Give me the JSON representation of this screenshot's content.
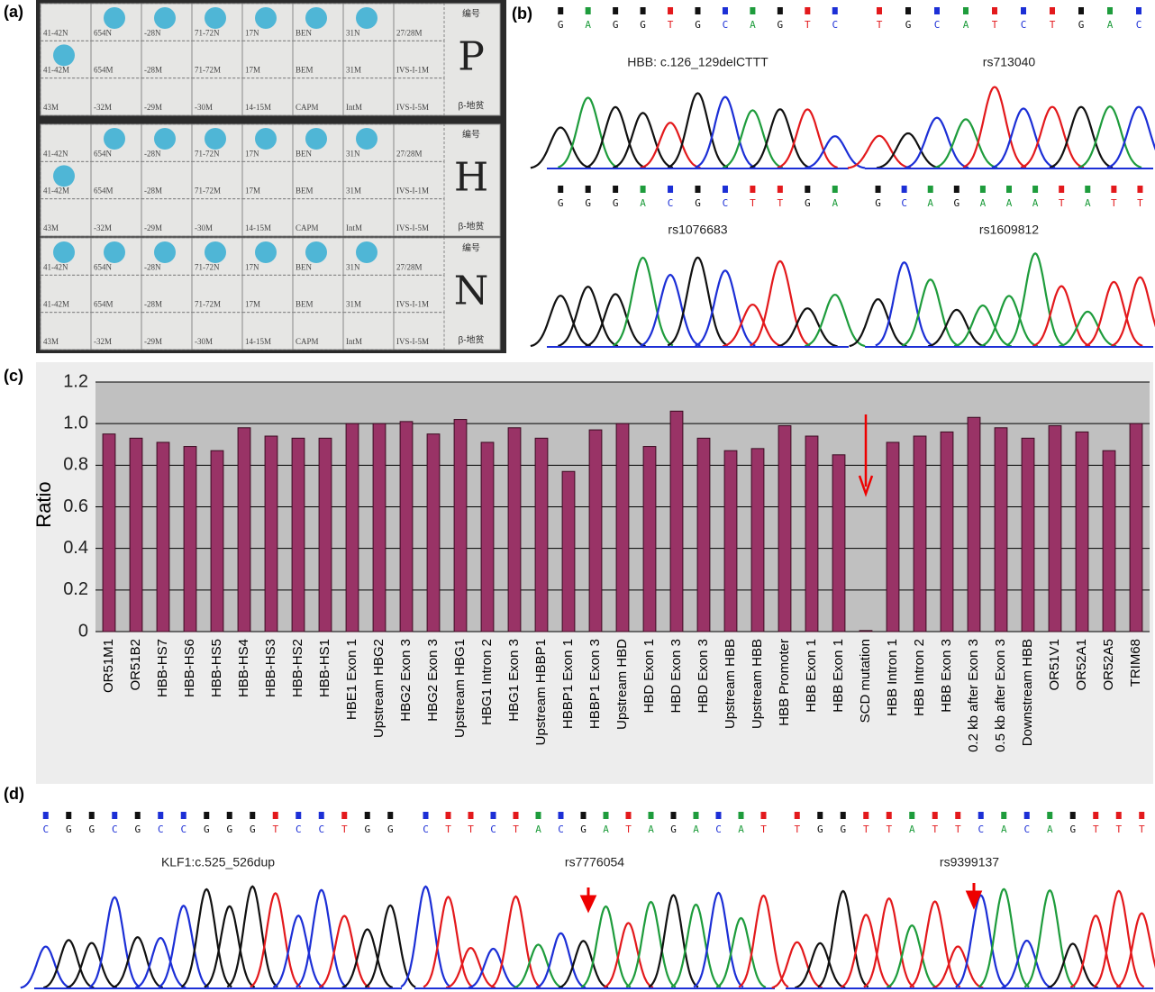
{
  "panels": {
    "a": "(a)",
    "b": "(b)",
    "c": "(c)",
    "d": "(d)"
  },
  "strips": {
    "row_labels": [
      [
        "41-42N",
        "654N",
        "-28N",
        "71-72N",
        "17N",
        "BEN",
        "31N",
        "27/28M"
      ],
      [
        "41-42M",
        "654M",
        "-28M",
        "71-72M",
        "17M",
        "BEM",
        "31M",
        "IVS-I-1M"
      ],
      [
        "43M",
        "-32M",
        "-29M",
        "-30M",
        "14-15M",
        "CAPM",
        "IntM",
        "IVS-I-5M"
      ]
    ],
    "header": "编号",
    "footer": "β-地贫",
    "marks": [
      "P",
      "H",
      "N"
    ]
  },
  "chromatograms_b": [
    {
      "title": "HBB: c.126_129delCTTT",
      "bases": [
        "G",
        "A",
        "G",
        "G",
        "T",
        "G",
        "C",
        "A",
        "G",
        "T",
        "C"
      ]
    },
    {
      "title": "rs713040",
      "bases": [
        "T",
        "G",
        "C",
        "A",
        "T",
        "C",
        "T",
        "G",
        "A",
        "C"
      ]
    },
    {
      "title": "rs1076683",
      "bases": [
        "G",
        "G",
        "G",
        "A",
        "C",
        "G",
        "C",
        "T",
        "T",
        "G",
        "A"
      ]
    },
    {
      "title": "rs1609812",
      "bases": [
        "G",
        "C",
        "A",
        "G",
        "A",
        "A",
        "A",
        "T",
        "A",
        "T",
        "T"
      ]
    }
  ],
  "chart_data": {
    "type": "bar",
    "y_label": "Ratio",
    "categories": [
      "OR51M1",
      "OR51B2",
      "HBB-HS7",
      "HBB-HS6",
      "HBB-HS5",
      "HBB-HS4",
      "HBB-HS3",
      "HBB-HS2",
      "HBB-HS1",
      "HBE1 Exon 1",
      "Upstream HBG2",
      "HBG2 Exon 3",
      "HBG2 Exon 3",
      "Upstream HBG1",
      "HBG1 Intron 2",
      "HBG1 Exon 3",
      "Upstream HBBP1",
      "HBBP1 Exon 1",
      "HBBP1 Exon 3",
      "Upstream HBD",
      "HBD Exon 1",
      "HBD Exon 3",
      "HBD Exon 3",
      "Upstream HBB",
      "Upstream HBB",
      "HBB Promoter",
      "HBB Exon 1",
      "HBB Exon 1",
      "SCD mutation",
      "HBB Intron 1",
      "HBB Intron 2",
      "HBB Exon 3",
      "0.2 kb after Exon 3",
      "0.5 kb after Exon 3",
      "Downstream HBB",
      "OR51V1",
      "OR52A1",
      "OR52A5",
      "TRIM68"
    ],
    "values": [
      0.95,
      0.93,
      0.91,
      0.89,
      0.87,
      0.98,
      0.94,
      0.93,
      0.93,
      1.0,
      1.0,
      1.01,
      0.95,
      1.02,
      0.91,
      0.98,
      0.93,
      0.77,
      0.97,
      1.0,
      0.89,
      1.06,
      0.93,
      0.87,
      0.88,
      0.99,
      0.94,
      0.85,
      0.005,
      0.91,
      0.94,
      0.96,
      1.03,
      0.98,
      0.93,
      0.99,
      0.96,
      0.87,
      1.0
    ],
    "color": "#993366",
    "ylim": [
      0,
      1.2
    ],
    "yticks": [
      0,
      0.2,
      0.4,
      0.6,
      0.8,
      {
        "value": 1,
        "label": "1.0"
      },
      1.2
    ],
    "grid": true
  },
  "chromatograms_d": [
    {
      "title": "KLF1:c.525_526dup",
      "bases": [
        "C",
        "G",
        "G",
        "C",
        "G",
        "C",
        "C",
        "G",
        "G",
        "G",
        "T",
        "C",
        "C",
        "T",
        "G",
        "G"
      ]
    },
    {
      "title": "rs7776054",
      "bases": [
        "C",
        "T",
        "T",
        "C",
        "T",
        "A",
        "C",
        "G",
        "A",
        "T",
        "A",
        "G",
        "A",
        "C",
        "A",
        "T"
      ]
    },
    {
      "title": "rs9399137",
      "bases": [
        "T",
        "G",
        "G",
        "T",
        "T",
        "A",
        "T",
        "T",
        "C",
        "A",
        "C",
        "A",
        "G",
        "T",
        "T",
        "T"
      ]
    }
  ]
}
